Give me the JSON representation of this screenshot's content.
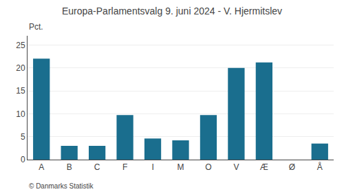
{
  "chart_data": {
    "type": "bar",
    "title": "Europa-Parlamentsvalg 9. juni 2024 - V. Hjermitslev",
    "categories": [
      "A",
      "B",
      "C",
      "F",
      "I",
      "M",
      "O",
      "V",
      "Æ",
      "Ø",
      "Å"
    ],
    "values": [
      22.0,
      3.0,
      3.0,
      9.7,
      4.6,
      4.2,
      9.7,
      20.0,
      21.2,
      0.0,
      3.5
    ],
    "color": "#1a6e8e",
    "ylabel": "Pct.",
    "ylim": [
      0,
      27
    ],
    "yticks": [
      0,
      5,
      10,
      15,
      20,
      25
    ],
    "grid": true,
    "annotations": [
      "© Danmarks Statistik"
    ]
  }
}
